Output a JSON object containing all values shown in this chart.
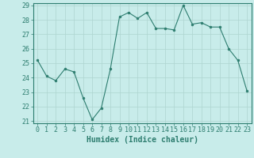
{
  "x": [
    0,
    1,
    2,
    3,
    4,
    5,
    6,
    7,
    8,
    9,
    10,
    11,
    12,
    13,
    14,
    15,
    16,
    17,
    18,
    19,
    20,
    21,
    22,
    23
  ],
  "y": [
    25.2,
    24.1,
    23.8,
    24.6,
    24.4,
    22.6,
    21.1,
    21.9,
    24.6,
    28.2,
    28.5,
    28.1,
    28.5,
    27.4,
    27.4,
    27.3,
    29.0,
    27.7,
    27.8,
    27.5,
    27.5,
    26.0,
    25.2,
    23.1
  ],
  "line_color": "#2d7d6f",
  "marker_color": "#2d7d6f",
  "bg_color": "#c8ecea",
  "grid_color": "#aed4d0",
  "tick_color": "#2d7d6f",
  "xlabel": "Humidex (Indice chaleur)",
  "ylim": [
    21,
    29
  ],
  "xlim": [
    -0.5,
    23.5
  ],
  "yticks": [
    21,
    22,
    23,
    24,
    25,
    26,
    27,
    28,
    29
  ],
  "xticks": [
    0,
    1,
    2,
    3,
    4,
    5,
    6,
    7,
    8,
    9,
    10,
    11,
    12,
    13,
    14,
    15,
    16,
    17,
    18,
    19,
    20,
    21,
    22,
    23
  ],
  "xlabel_fontsize": 7,
  "tick_fontsize": 6
}
